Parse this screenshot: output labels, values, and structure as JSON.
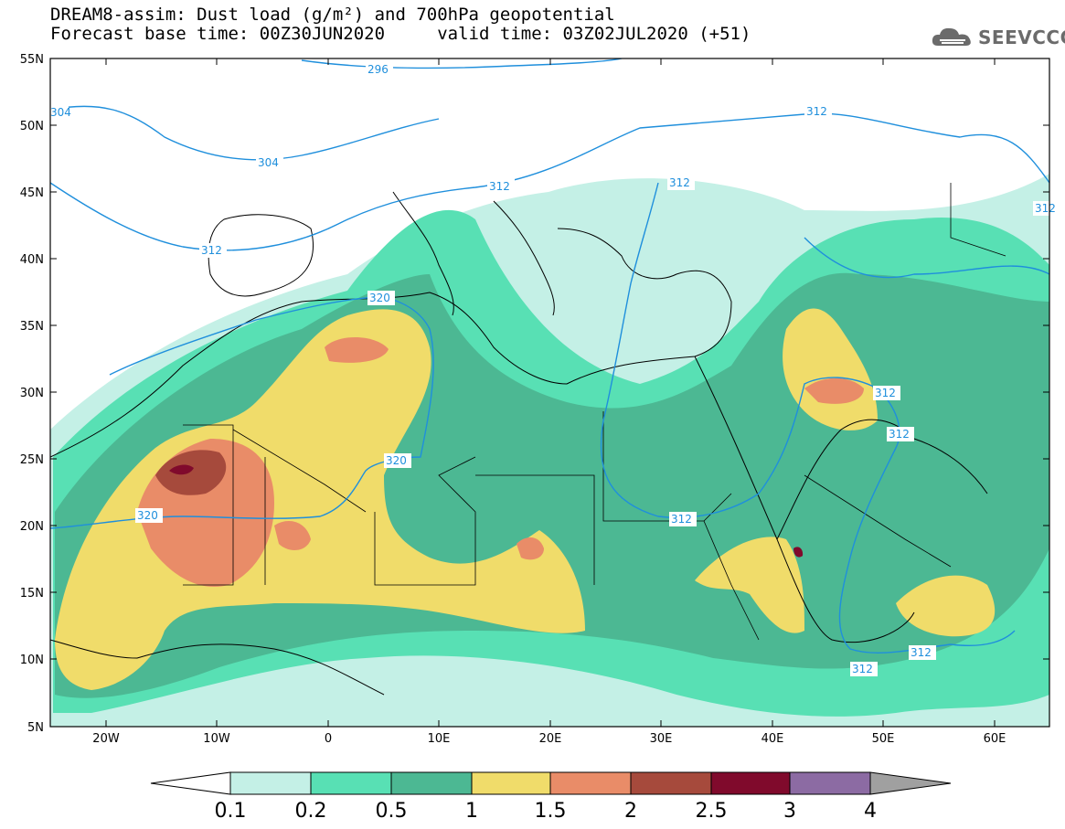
{
  "header": {
    "line1": "DREAM8-assim: Dust load (g/m²) and 700hPa geopotential",
    "line2": "Forecast base time: 00Z30JUN2020     valid time: 03Z02JUL2020 (+51)"
  },
  "logo": {
    "text": "SEEVCCC",
    "icon": "cloud-icon"
  },
  "map": {
    "lat_labels": [
      "55N",
      "50N",
      "45N",
      "40N",
      "35N",
      "30N",
      "25N",
      "20N",
      "15N",
      "10N",
      "5N"
    ],
    "lon_labels": [
      "20W",
      "10W",
      "0",
      "10E",
      "20E",
      "30E",
      "40E",
      "50E",
      "60E"
    ],
    "extent": {
      "lon_min": -25,
      "lon_max": 65,
      "lat_min": 5,
      "lat_max": 55
    },
    "contour_color": "#1f8fdc",
    "contour_labels": [
      "296",
      "304",
      "304",
      "312",
      "312",
      "312",
      "312",
      "312",
      "312",
      "312",
      "312",
      "312",
      "320",
      "320",
      "320",
      "312"
    ]
  },
  "colorbar": {
    "labels": [
      "0.1",
      "0.2",
      "0.5",
      "1",
      "1.5",
      "2",
      "2.5",
      "3",
      "4"
    ],
    "colors": [
      "#c4f0e6",
      "#58e0b4",
      "#4cb893",
      "#f0dc6a",
      "#e98c68",
      "#a64a3c",
      "#800a2c",
      "#8c6ba3",
      "#a0a0a0"
    ]
  }
}
